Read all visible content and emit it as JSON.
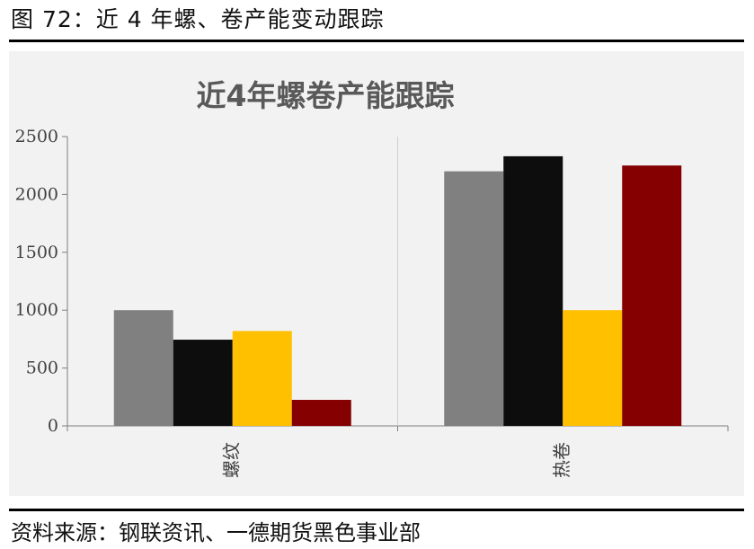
{
  "figure": {
    "caption": "图 72：近 4 年螺、卷产能变动跟踪",
    "source": "资料来源：钢联资讯、一德期货黑色事业部"
  },
  "chart_data": {
    "type": "bar",
    "title": "近4年螺卷产能跟踪",
    "categories": [
      "螺纹",
      "热卷"
    ],
    "series": [
      {
        "color": "#808080",
        "values": [
          1000,
          2200
        ]
      },
      {
        "color": "#0d0d0d",
        "values": [
          745,
          2330
        ]
      },
      {
        "color": "#ffc000",
        "values": [
          820,
          1000
        ]
      },
      {
        "color": "#850000",
        "values": [
          225,
          2250
        ]
      }
    ],
    "ylim": [
      0,
      2500
    ],
    "yticks": [
      0,
      500,
      1000,
      1500,
      2000,
      2500
    ],
    "grid": false,
    "legend": "none"
  }
}
